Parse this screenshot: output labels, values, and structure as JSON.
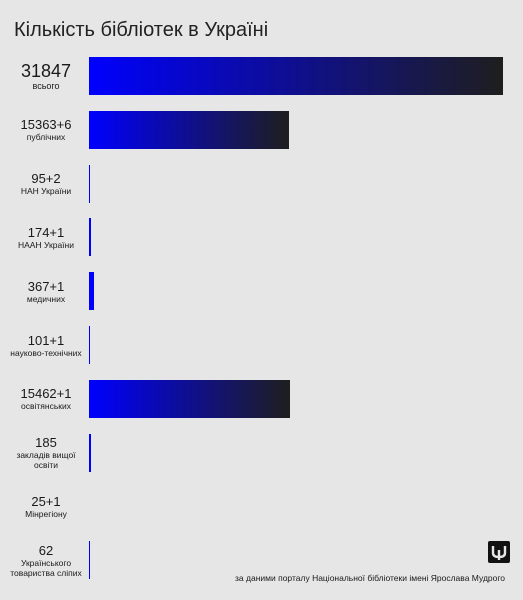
{
  "chart_data": {
    "type": "bar",
    "orientation": "horizontal",
    "title": "Кількість бібліотек в Україні",
    "categories": [
      "всього",
      "публічних",
      "НАН України",
      "НААН України",
      "медичних",
      "науково-технічних",
      "освітянських",
      "закладів вищої освіти",
      "Мінрегіону",
      "Українського товариства сліпих"
    ],
    "values": [
      31847,
      15369,
      97,
      175,
      368,
      102,
      15463,
      185,
      26,
      62
    ],
    "value_labels": [
      "31847",
      "15363+6",
      "95+2",
      "174+1",
      "367+1",
      "101+1",
      "15462+1",
      "185",
      "25+1",
      "62"
    ],
    "colors": [
      "#0000ff",
      "#1e1e1e"
    ],
    "source": "за даними порталу Національної бібліотеки імені Ярослава Мудрого"
  }
}
